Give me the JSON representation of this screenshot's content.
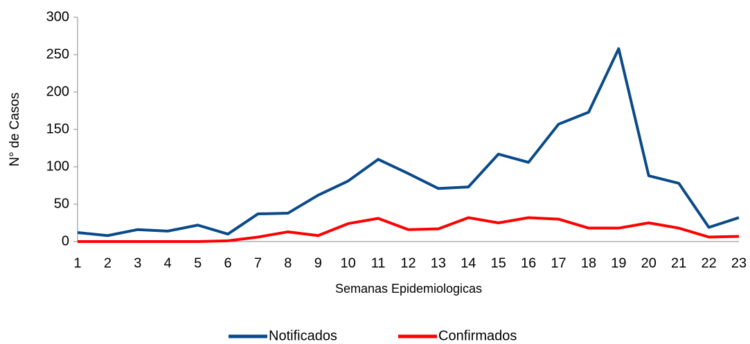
{
  "chart_data": {
    "type": "line",
    "xlabel": "Semanas Epidemiologicas",
    "ylabel": "N° de Casos",
    "categories": [
      "1",
      "2",
      "3",
      "4",
      "5",
      "6",
      "7",
      "8",
      "9",
      "10",
      "11",
      "12",
      "13",
      "14",
      "15",
      "16",
      "17",
      "18",
      "19",
      "20",
      "21",
      "22",
      "23"
    ],
    "series": [
      {
        "name": "Notificados",
        "color": "#0a4a8a",
        "values": [
          12,
          8,
          16,
          14,
          22,
          10,
          37,
          38,
          62,
          81,
          110,
          91,
          71,
          73,
          117,
          106,
          157,
          173,
          258,
          88,
          78,
          19,
          32
        ]
      },
      {
        "name": "Confirmados",
        "color": "#ff0000",
        "values": [
          0,
          0,
          0,
          0,
          0,
          1,
          6,
          13,
          8,
          24,
          31,
          16,
          17,
          32,
          25,
          32,
          30,
          18,
          18,
          25,
          18,
          6,
          7
        ]
      }
    ],
    "ylim": [
      0,
      300
    ],
    "yticks": [
      0,
      50,
      100,
      150,
      200,
      250,
      300
    ],
    "legend": "bottom"
  }
}
